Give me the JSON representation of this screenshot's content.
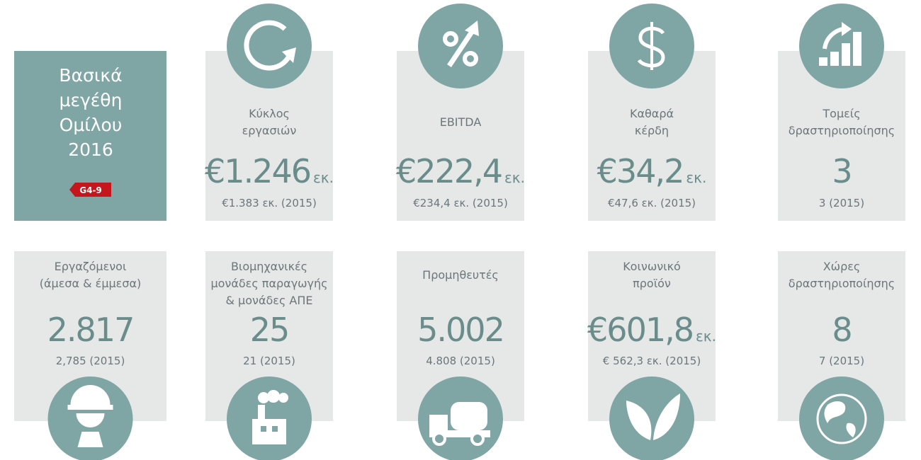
{
  "header": {
    "title_lines": [
      "Βασικά",
      "μεγέθη",
      "Ομίλου",
      "2016"
    ],
    "badge": "G4-9"
  },
  "top_row": [
    {
      "label_lines": [
        "Κύκλος",
        "εργασιών"
      ],
      "value": "€1.246",
      "unit": "εκ.",
      "previous": "€1.383 εκ. (2015)"
    },
    {
      "label_lines": [
        "EBITDA"
      ],
      "value": "€222,4",
      "unit": "εκ.",
      "previous": "€234,4 εκ. (2015)"
    },
    {
      "label_lines": [
        "Καθαρά",
        "κέρδη"
      ],
      "value": "€34,2",
      "unit": "εκ.",
      "previous": "€47,6 εκ. (2015)"
    },
    {
      "label_lines": [
        "Τομείς",
        "δραστηριοποίησης"
      ],
      "value": "3",
      "unit": "",
      "previous": "3 (2015)"
    }
  ],
  "bottom_row": [
    {
      "label_lines": [
        "Εργαζόμενοι",
        "(άμεσα & έμμεσα)"
      ],
      "value": "2.817",
      "unit": "",
      "previous": "2,785 (2015)"
    },
    {
      "label_lines": [
        "Βιομηχανικές",
        "μονάδες παραγωγής",
        "& μονάδες ΑΠΕ"
      ],
      "value": "25",
      "unit": "",
      "previous": "21 (2015)"
    },
    {
      "label_lines": [
        "Προμηθευτές"
      ],
      "value": "5.002",
      "unit": "",
      "previous": "4.808 (2015)"
    },
    {
      "label_lines": [
        "Κοινωνικό",
        "προϊόν"
      ],
      "value": "€601,8",
      "unit": "εκ.",
      "previous": "€ 562,3 εκ.  (2015)"
    },
    {
      "label_lines": [
        "Χώρες",
        "δραστηριοποίησης"
      ],
      "value": "8",
      "unit": "",
      "previous": "7 (2015)"
    }
  ]
}
